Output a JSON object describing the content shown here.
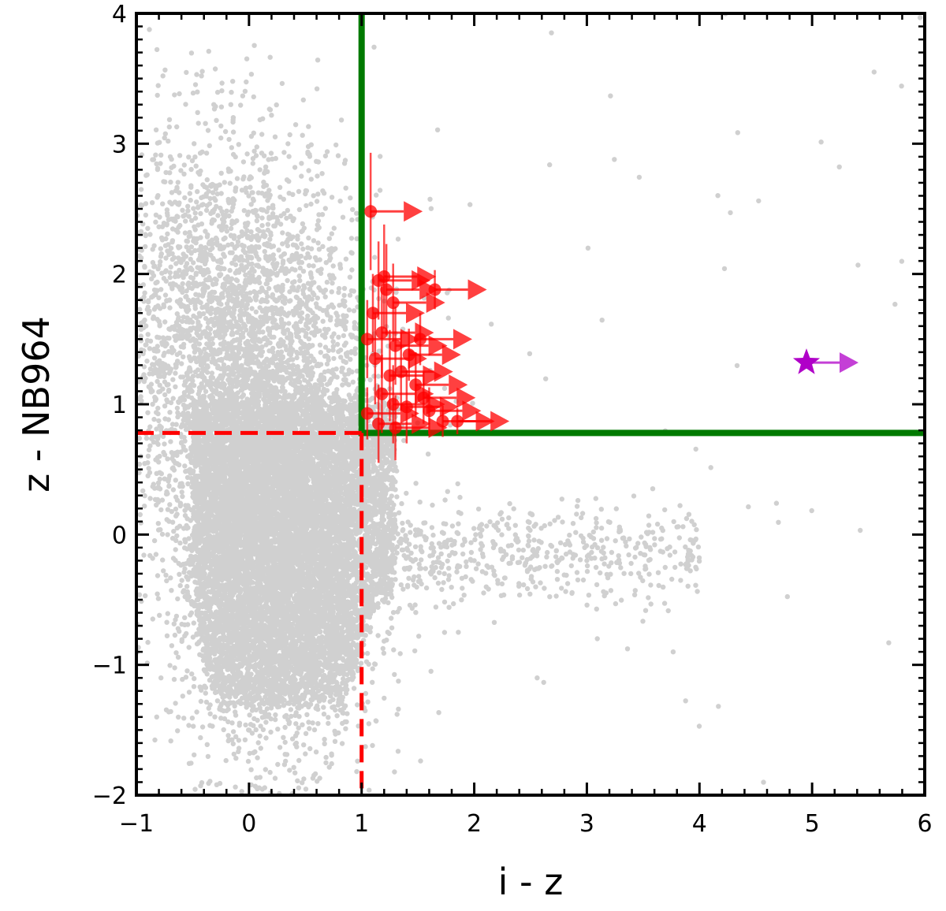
{
  "chart_data": {
    "type": "scatter",
    "title": "",
    "xlabel": "i - z",
    "ylabel": "z - NB964",
    "xlim": [
      -1,
      6
    ],
    "ylim": [
      -2,
      4
    ],
    "grid": false,
    "x_ticks": [
      -1,
      0,
      1,
      2,
      3,
      4,
      5,
      6
    ],
    "x_tick_labels": [
      "−1",
      "0",
      "1",
      "2",
      "3",
      "4",
      "5",
      "6"
    ],
    "y_ticks": [
      -2,
      -1,
      0,
      1,
      2,
      3,
      4
    ],
    "y_tick_labels": [
      "−2",
      "−1",
      "0",
      "1",
      "2",
      "3",
      "4"
    ],
    "background_population": {
      "color": "#b0b0b0",
      "description_points": [
        {
          "x": 0.0,
          "y": 2.2
        },
        {
          "x": 0.2,
          "y": 1.0
        },
        {
          "x": 0.3,
          "y": 0.0
        },
        {
          "x": 0.5,
          "y": -0.5
        },
        {
          "x": 0.35,
          "y": -1.2
        },
        {
          "x": 1.5,
          "y": 0.0
        },
        {
          "x": 2.0,
          "y": -0.2
        },
        {
          "x": 3.0,
          "y": -0.2
        },
        {
          "x": 3.9,
          "y": -0.15
        }
      ]
    },
    "selection_lines": [
      {
        "style": "solid",
        "color": "#007a00",
        "points": [
          [
            1.0,
            4.0
          ],
          [
            1.0,
            0.78
          ],
          [
            6.0,
            0.78
          ]
        ]
      },
      {
        "style": "dashed",
        "color": "#ff0000",
        "points": [
          [
            -1.0,
            0.78
          ],
          [
            1.0,
            0.78
          ]
        ]
      },
      {
        "style": "dashed",
        "color": "#ff0000",
        "points": [
          [
            1.0,
            0.78
          ],
          [
            1.0,
            -2.0
          ]
        ]
      }
    ],
    "series": [
      {
        "marker": "circle-with-lower-limit-arrow",
        "color": "#ff0000",
        "points": [
          {
            "x": 1.08,
            "y": 2.48,
            "yerr": 0.45
          },
          {
            "x": 1.15,
            "y": 1.95,
            "yerr": 0.3
          },
          {
            "x": 1.2,
            "y": 1.98,
            "yerr": 0.4
          },
          {
            "x": 1.28,
            "y": 1.78,
            "yerr": 0.3
          },
          {
            "x": 1.22,
            "y": 1.88,
            "yerr": 0.35
          },
          {
            "x": 1.65,
            "y": 1.88,
            "yerr": 0.15
          },
          {
            "x": 1.1,
            "y": 1.7,
            "yerr": 0.3
          },
          {
            "x": 1.05,
            "y": 1.5,
            "yerr": 0.3
          },
          {
            "x": 1.18,
            "y": 1.55,
            "yerr": 0.35
          },
          {
            "x": 1.3,
            "y": 1.45,
            "yerr": 0.3
          },
          {
            "x": 1.42,
            "y": 1.38,
            "yerr": 0.2
          },
          {
            "x": 1.52,
            "y": 1.5,
            "yerr": 0.2
          },
          {
            "x": 1.12,
            "y": 1.35,
            "yerr": 0.35
          },
          {
            "x": 1.25,
            "y": 1.22,
            "yerr": 0.35
          },
          {
            "x": 1.35,
            "y": 1.25,
            "yerr": 0.3
          },
          {
            "x": 1.48,
            "y": 1.15,
            "yerr": 0.25
          },
          {
            "x": 1.18,
            "y": 1.08,
            "yerr": 0.3
          },
          {
            "x": 1.28,
            "y": 1.0,
            "yerr": 0.3
          },
          {
            "x": 1.4,
            "y": 0.98,
            "yerr": 0.28
          },
          {
            "x": 1.55,
            "y": 1.05,
            "yerr": 0.2
          },
          {
            "x": 1.6,
            "y": 0.95,
            "yerr": 0.18
          },
          {
            "x": 1.05,
            "y": 0.93,
            "yerr": 0.2
          },
          {
            "x": 1.15,
            "y": 0.85,
            "yerr": 0.3
          },
          {
            "x": 1.3,
            "y": 0.82,
            "yerr": 0.25
          },
          {
            "x": 1.72,
            "y": 0.87,
            "yerr": 0.12
          },
          {
            "x": 1.85,
            "y": 0.87,
            "yerr": 0.1
          }
        ]
      },
      {
        "marker": "star-with-lower-limit-arrow",
        "color": "#b000c8",
        "points": [
          {
            "x": 4.95,
            "y": 1.32
          }
        ]
      }
    ]
  }
}
